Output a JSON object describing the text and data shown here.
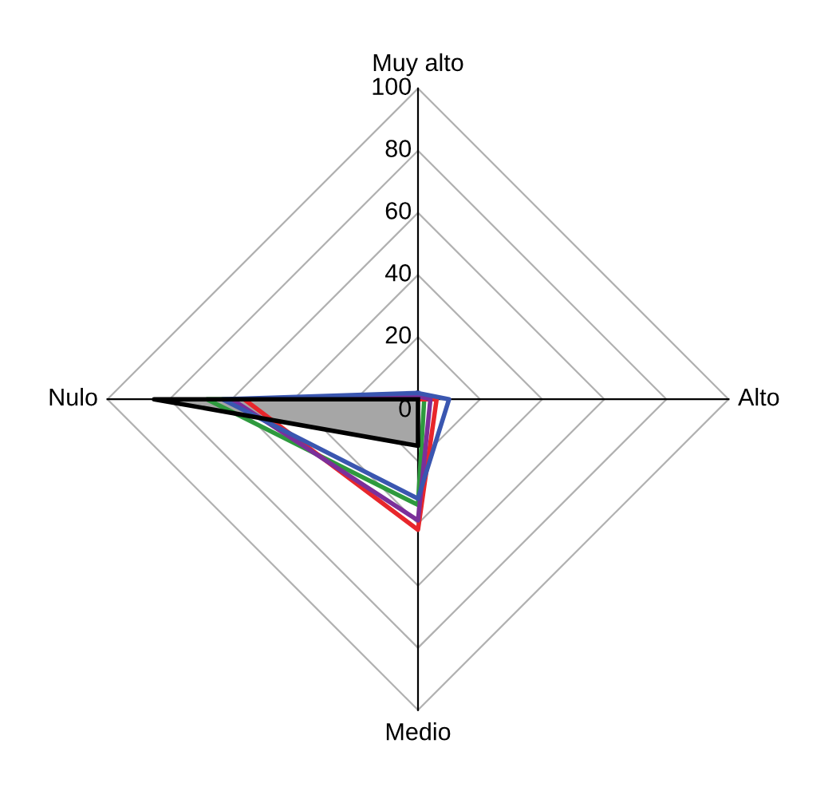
{
  "chart_data": {
    "type": "radar",
    "categories": [
      "Muy alto",
      "Alto",
      "Medio",
      "Nulo"
    ],
    "ylim": [
      0,
      100
    ],
    "yticks": [
      0,
      20,
      40,
      60,
      80,
      100
    ],
    "grid": true,
    "series": [
      {
        "type": "area",
        "color": "#000000",
        "values": [
          0,
          0,
          15,
          85
        ]
      },
      {
        "color": "#2e9a3e",
        "values": [
          0,
          2,
          34,
          68
        ]
      },
      {
        "color": "#e8262b",
        "values": [
          0,
          6,
          42,
          56
        ]
      },
      {
        "color": "#7b2f9a",
        "values": [
          1,
          4,
          39,
          60
        ]
      },
      {
        "color": "#3a56b0",
        "values": [
          2,
          10,
          32,
          63
        ]
      }
    ]
  }
}
